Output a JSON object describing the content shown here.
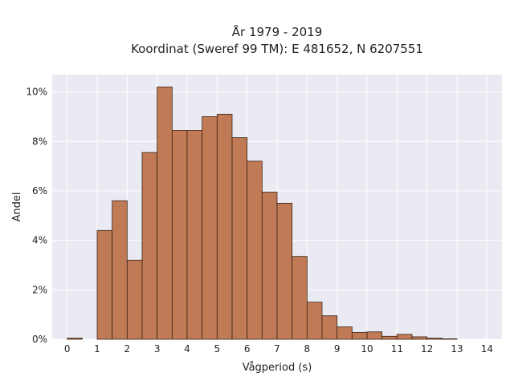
{
  "chart_data": {
    "type": "bar",
    "title_lines": [
      "År 1979 - 2019",
      "Koordinat (Sweref 99 TM): E 481652, N 6207551"
    ],
    "xlabel": "Vågperiod (s)",
    "ylabel": "Andel",
    "xlim": [
      -0.5,
      14.5
    ],
    "ylim": [
      0,
      10.7
    ],
    "x_ticks": [
      "0",
      "1",
      "2",
      "3",
      "4",
      "5",
      "6",
      "7",
      "8",
      "9",
      "10",
      "11",
      "12",
      "13",
      "14"
    ],
    "y_ticks": [
      "0%",
      "2%",
      "4%",
      "6%",
      "8%",
      "10%"
    ],
    "bin_width": 0.5,
    "bin_starts": [
      0,
      1,
      1.5,
      2,
      2.5,
      3,
      3.5,
      4,
      4.5,
      5,
      5.5,
      6,
      6.5,
      7,
      7.5,
      8,
      8.5,
      9,
      9.5,
      10,
      10.5,
      11,
      11.5,
      12,
      12.5
    ],
    "values": [
      0.05,
      4.4,
      5.6,
      3.2,
      7.55,
      10.2,
      8.45,
      8.45,
      9.0,
      9.1,
      8.15,
      7.2,
      5.95,
      5.5,
      3.35,
      1.5,
      0.95,
      0.5,
      0.28,
      0.3,
      0.12,
      0.2,
      0.1,
      0.05,
      0.02
    ],
    "grid": true,
    "colors": {
      "bar": "#c07a55",
      "bar_edge": "#3a2418",
      "plot_background": "#eaeaf2",
      "grid": "#ffffff"
    }
  }
}
